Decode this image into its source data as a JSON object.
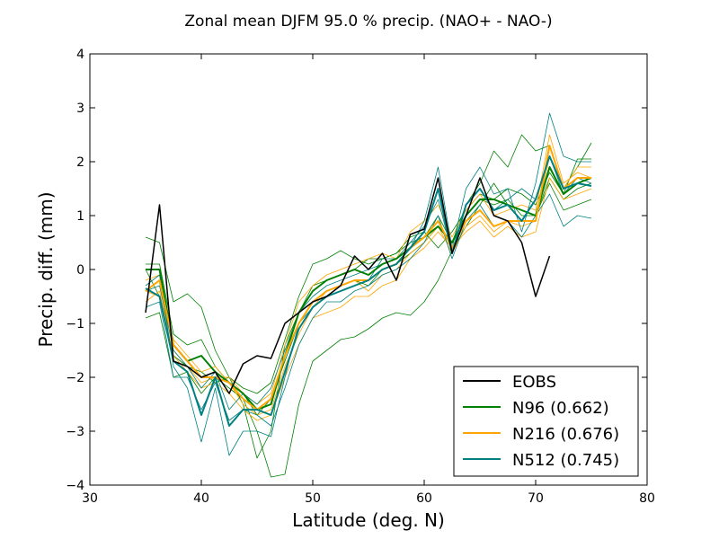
{
  "chart_data": {
    "type": "line",
    "title": "Zonal mean DJFM 95.0 % precip. (NAO+ - NAO-)",
    "xlabel": "Latitude (deg. N)",
    "ylabel": "Precip. diff. (mm)",
    "xlim": [
      30,
      80
    ],
    "ylim": [
      -4,
      4
    ],
    "xticks": [
      30,
      40,
      50,
      60,
      70,
      80
    ],
    "yticks": [
      -4,
      -3,
      -2,
      -1,
      0,
      1,
      2,
      3,
      4
    ],
    "xtick_labels": [
      "30",
      "40",
      "50",
      "60",
      "70",
      "80"
    ],
    "ytick_labels": [
      "−4",
      "−3",
      "−2",
      "−1",
      "0",
      "1",
      "2",
      "3",
      "4"
    ],
    "grid": false,
    "legend_position": "lower-right",
    "legend": [
      {
        "label": "EOBS",
        "color": "#000000"
      },
      {
        "label": "N96 (0.662)",
        "color": "#008000"
      },
      {
        "label": "N216 (0.676)",
        "color": "#FFA500"
      },
      {
        "label": "N512 (0.745)",
        "color": "#008080"
      }
    ],
    "x": [
      35,
      36.25,
      37.5,
      38.75,
      40,
      41.25,
      42.5,
      43.75,
      45,
      46.25,
      47.5,
      48.75,
      50,
      51.25,
      52.5,
      53.75,
      55,
      56.25,
      57.5,
      58.75,
      60,
      61.25,
      62.5,
      63.75,
      65,
      66.25,
      67.5,
      68.75,
      70,
      71.25,
      72.5,
      73.75,
      75
    ],
    "series": [
      {
        "group": "EOBS",
        "color": "#000000",
        "width": 1.5,
        "values": [
          -0.8,
          1.2,
          -1.7,
          -1.8,
          -2.0,
          -1.9,
          -2.3,
          -1.75,
          -1.6,
          -1.65,
          -1.0,
          -0.8,
          -0.6,
          -0.5,
          -0.3,
          0.25,
          0.0,
          0.3,
          -0.2,
          0.65,
          0.75,
          1.7,
          0.3,
          1.0,
          1.7,
          1.0,
          0.9,
          0.5,
          -0.5,
          0.25,
          null,
          null,
          null
        ]
      },
      {
        "group": "N96",
        "color": "#008000",
        "width": 0.8,
        "values": [
          0.6,
          0.5,
          -0.6,
          -0.45,
          -0.7,
          -1.5,
          -2.0,
          -2.5,
          -3.5,
          -3.0,
          -1.4,
          -0.8,
          -0.3,
          -0.2,
          -0.1,
          0.0,
          0.2,
          0.2,
          0.3,
          0.5,
          0.6,
          1.0,
          0.5,
          1.2,
          1.6,
          2.2,
          1.9,
          2.5,
          2.2,
          2.3,
          1.5,
          1.9,
          2.35
        ]
      },
      {
        "group": "N96",
        "color": "#008000",
        "width": 0.8,
        "values": [
          -0.9,
          -0.8,
          -2.0,
          -1.9,
          -2.3,
          -2.0,
          -2.2,
          -2.4,
          -3.0,
          -3.85,
          -3.8,
          -2.5,
          -1.7,
          -1.5,
          -1.3,
          -1.25,
          -1.1,
          -0.9,
          -0.8,
          -0.85,
          -0.6,
          -0.2,
          0.35,
          0.8,
          1.2,
          1.6,
          1.2,
          1.1,
          1.0,
          1.6,
          1.1,
          1.2,
          1.3
        ]
      },
      {
        "group": "N96",
        "color": "#008000",
        "width": 0.8,
        "values": [
          0.1,
          0.1,
          -1.2,
          -1.4,
          -1.3,
          -1.8,
          -2.1,
          -2.3,
          -2.7,
          -2.4,
          -1.7,
          -1.0,
          -0.6,
          -0.4,
          -0.3,
          -0.2,
          -0.3,
          0.0,
          0.1,
          0.3,
          0.5,
          0.8,
          0.5,
          1.0,
          1.3,
          1.2,
          1.3,
          1.0,
          1.0,
          1.7,
          1.3,
          1.5,
          1.6
        ]
      },
      {
        "group": "N96",
        "color": "#008000",
        "width": 0.8,
        "values": [
          0.0,
          -0.5,
          -1.6,
          -1.8,
          -1.9,
          -2.1,
          -2.0,
          -2.2,
          -2.3,
          -2.1,
          -1.3,
          -0.5,
          0.1,
          0.2,
          0.35,
          0.2,
          0.1,
          0.2,
          0.3,
          0.6,
          0.7,
          0.4,
          0.7,
          1.1,
          1.4,
          1.3,
          1.5,
          1.4,
          1.2,
          1.8,
          1.4,
          2.05,
          2.05
        ]
      },
      {
        "group": "N96",
        "color": "#008000",
        "width": 2.0,
        "values": [
          0.0,
          0.0,
          -1.4,
          -1.7,
          -1.6,
          -1.9,
          -2.1,
          -2.3,
          -2.6,
          -2.5,
          -1.6,
          -0.8,
          -0.4,
          -0.2,
          -0.1,
          0.0,
          -0.1,
          0.1,
          0.2,
          0.4,
          0.6,
          0.8,
          0.5,
          1.0,
          1.3,
          1.3,
          1.2,
          1.1,
          1.0,
          1.9,
          1.4,
          1.6,
          1.7
        ]
      },
      {
        "group": "N216",
        "color": "#FFA500",
        "width": 0.8,
        "values": [
          -0.4,
          -0.5,
          -1.3,
          -1.6,
          -1.9,
          -1.8,
          -2.1,
          -2.5,
          -2.7,
          -2.6,
          -1.8,
          -1.2,
          -0.7,
          -0.4,
          -0.3,
          -0.2,
          -0.4,
          -0.1,
          0.0,
          0.3,
          0.5,
          0.8,
          0.3,
          0.8,
          1.0,
          0.7,
          0.9,
          0.8,
          0.9,
          2.1,
          1.5,
          1.9,
          1.9
        ]
      },
      {
        "group": "N216",
        "color": "#FFA500",
        "width": 0.8,
        "values": [
          -0.2,
          -0.1,
          -1.5,
          -1.8,
          -2.1,
          -2.0,
          -2.0,
          -2.3,
          -2.5,
          -2.3,
          -1.4,
          -0.6,
          -0.3,
          -0.1,
          0.0,
          0.1,
          0.2,
          0.3,
          0.2,
          0.7,
          0.9,
          1.2,
          0.6,
          1.1,
          1.4,
          1.0,
          1.1,
          1.2,
          1.1,
          2.5,
          1.6,
          1.8,
          1.7
        ]
      },
      {
        "group": "N216",
        "color": "#FFA500",
        "width": 0.8,
        "values": [
          -0.6,
          -0.4,
          -1.6,
          -1.9,
          -2.2,
          -2.1,
          -2.3,
          -2.6,
          -2.8,
          -2.7,
          -2.0,
          -1.4,
          -0.9,
          -0.8,
          -0.7,
          -0.5,
          -0.5,
          -0.3,
          -0.2,
          0.2,
          0.4,
          0.7,
          0.4,
          0.7,
          0.9,
          0.6,
          0.8,
          0.6,
          0.7,
          1.7,
          1.3,
          1.4,
          1.5
        ]
      },
      {
        "group": "N216",
        "color": "#FFA500",
        "width": 2.0,
        "values": [
          -0.4,
          -0.2,
          -1.4,
          -1.7,
          -2.0,
          -2.0,
          -2.1,
          -2.4,
          -2.6,
          -2.4,
          -1.6,
          -1.0,
          -0.6,
          -0.4,
          -0.3,
          -0.2,
          -0.2,
          0.0,
          0.1,
          0.4,
          0.6,
          0.9,
          0.4,
          0.9,
          1.1,
          0.8,
          0.9,
          0.9,
          0.9,
          2.3,
          1.5,
          1.7,
          1.7
        ]
      },
      {
        "group": "N512",
        "color": "#008080",
        "width": 0.8,
        "values": [
          -0.3,
          -0.1,
          -1.8,
          -2.2,
          -3.2,
          -2.2,
          -3.45,
          -3.0,
          -3.0,
          -3.1,
          -2.0,
          -1.0,
          -0.7,
          -0.5,
          -0.4,
          -0.3,
          -0.2,
          0.2,
          0.2,
          0.4,
          0.9,
          1.9,
          0.4,
          1.5,
          1.9,
          1.4,
          1.5,
          0.7,
          1.6,
          2.9,
          2.1,
          2.0,
          2.0
        ]
      },
      {
        "group": "N512",
        "color": "#008080",
        "width": 0.8,
        "values": [
          -0.7,
          -0.6,
          -2.0,
          -2.0,
          -2.6,
          -2.1,
          -2.8,
          -2.6,
          -2.7,
          -2.9,
          -2.2,
          -1.4,
          -0.9,
          -0.6,
          -0.6,
          -0.4,
          -0.3,
          -0.1,
          0.0,
          0.2,
          0.5,
          1.0,
          0.2,
          0.9,
          1.2,
          0.8,
          0.9,
          0.6,
          1.0,
          1.4,
          0.8,
          1.0,
          0.95
        ]
      },
      {
        "group": "N512",
        "color": "#008080",
        "width": 0.8,
        "values": [
          -0.4,
          -0.3,
          -1.5,
          -1.8,
          -2.2,
          -1.9,
          -2.6,
          -2.3,
          -2.5,
          -2.2,
          -1.5,
          -0.8,
          -0.5,
          -0.3,
          -0.2,
          -0.1,
          0.0,
          0.1,
          0.2,
          0.5,
          0.8,
          1.3,
          0.3,
          1.2,
          1.5,
          1.1,
          1.3,
          1.5,
          1.3,
          2.1,
          1.4,
          1.7,
          1.6
        ]
      },
      {
        "group": "N512",
        "color": "#008080",
        "width": 2.0,
        "values": [
          -0.35,
          -0.5,
          -1.7,
          -1.9,
          -2.7,
          -2.0,
          -2.9,
          -2.6,
          -2.6,
          -2.7,
          -1.9,
          -1.1,
          -0.7,
          -0.5,
          -0.4,
          -0.3,
          -0.2,
          0.0,
          0.1,
          0.4,
          0.7,
          1.5,
          0.3,
          1.2,
          1.5,
          1.1,
          1.2,
          0.9,
          1.3,
          2.1,
          1.5,
          1.6,
          1.55
        ]
      }
    ]
  }
}
